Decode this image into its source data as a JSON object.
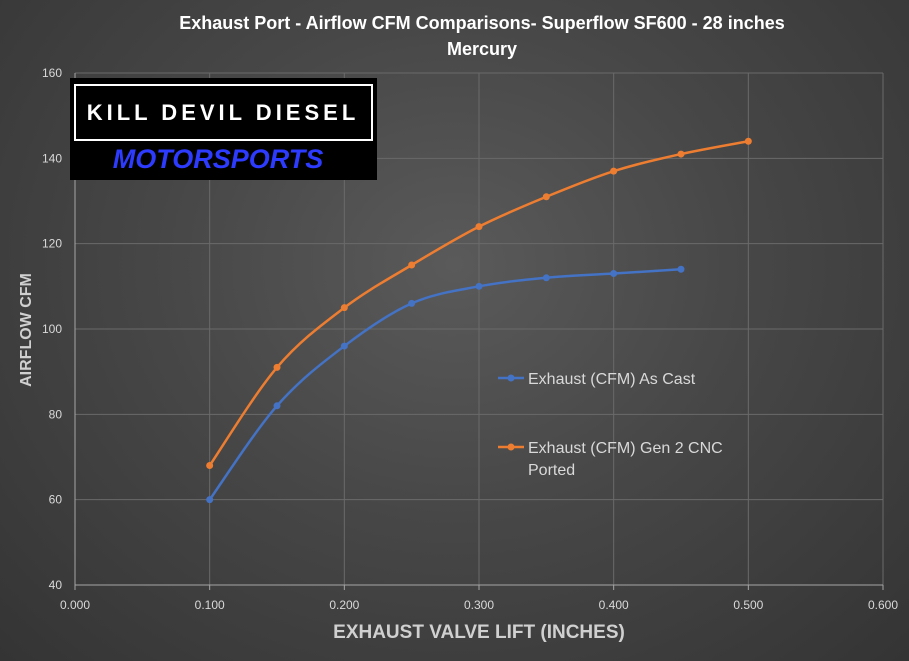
{
  "chart_data": {
    "type": "line",
    "title_line1": "Exhaust  Port  - Airflow  CFM  Comparisons-  Superflow  SF600 - 28 inches",
    "title_line2": "Mercury",
    "xlabel": "EXHAUST VALVE LIFT (INCHES)",
    "ylabel": "AIRFLOW CFM",
    "xlim": [
      0,
      0.6
    ],
    "ylim": [
      40,
      160
    ],
    "x_ticks": [
      "0.000",
      "0.100",
      "0.200",
      "0.300",
      "0.400",
      "0.500",
      "0.600"
    ],
    "y_ticks": [
      "40",
      "60",
      "80",
      "100",
      "120",
      "140",
      "160"
    ],
    "grid": true,
    "legend_position": "right-center",
    "series": [
      {
        "name": "Exhaust (CFM) As Cast",
        "color": "#4472c4",
        "x": [
          0.1,
          0.15,
          0.2,
          0.25,
          0.3,
          0.35,
          0.4,
          0.45
        ],
        "y": [
          60,
          82,
          96,
          106,
          110,
          112,
          113,
          114
        ]
      },
      {
        "name": "Exhaust (CFM) Gen 2 CNC Ported",
        "color": "#ed7d31",
        "x": [
          0.1,
          0.15,
          0.2,
          0.25,
          0.3,
          0.35,
          0.4,
          0.45,
          0.5
        ],
        "y": [
          68,
          91,
          105,
          115,
          124,
          131,
          137,
          141,
          144
        ]
      }
    ]
  },
  "logo": {
    "line1": "KILL DEVIL DIESEL",
    "line2": "MOTORSPORTS"
  },
  "legend": {
    "item1_label": "Exhaust (CFM) As Cast",
    "item2_line1": "Exhaust (CFM) Gen 2 CNC",
    "item2_line2": "Ported"
  }
}
